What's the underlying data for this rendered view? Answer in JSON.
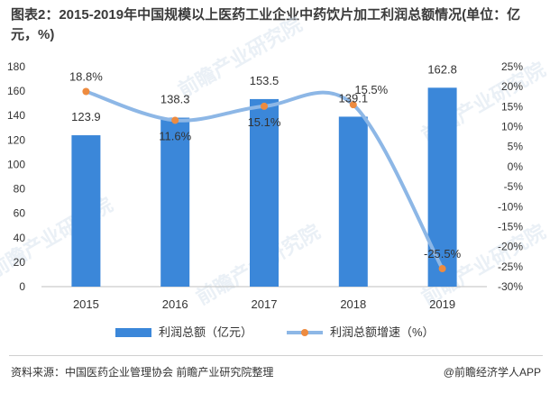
{
  "title": "图表2：2015-2019年中国规模以上医药工业企业中药饮片加工利润总额情况(单位：亿元，%)",
  "source": "资料来源：中国医药企业管理协会 前瞻产业研究院整理",
  "credit": "@前瞻经济学人APP",
  "watermark": "前瞻产业研究院",
  "colors": {
    "bar": "#3b87d9",
    "line": "#8db7e6",
    "marker": "#ee8b3f",
    "label": "#333333"
  },
  "chart_data": {
    "type": "bar+line",
    "categories": [
      "2015",
      "2016",
      "2017",
      "2018",
      "2019"
    ],
    "series": [
      {
        "name": "利润总额（亿元）",
        "type": "bar",
        "axis": "left",
        "values": [
          123.9,
          138.3,
          153.5,
          139.1,
          162.8
        ]
      },
      {
        "name": "利润总额增速（%）",
        "type": "line",
        "axis": "right",
        "values": [
          18.8,
          11.6,
          15.1,
          15.5,
          -25.5
        ]
      }
    ],
    "y_left": {
      "min": 0,
      "max": 180,
      "ticks": [
        "0",
        "20",
        "40",
        "60",
        "80",
        "100",
        "120",
        "140",
        "160",
        "180"
      ]
    },
    "y_right": {
      "min": -30,
      "max": 25,
      "ticks": [
        "-30%",
        "-25%",
        "-20%",
        "-15%",
        "-10%",
        "-5%",
        "0%",
        "5%",
        "10%",
        "15%",
        "20%",
        "25%"
      ]
    },
    "bar_labels": [
      "123.9",
      "138.3",
      "153.5",
      "139.1",
      "162.8"
    ],
    "line_labels": [
      "18.8%",
      "11.6%",
      "15.1%",
      "15.5%",
      "-25.5%"
    ],
    "grid": false,
    "legend_position": "bottom"
  }
}
